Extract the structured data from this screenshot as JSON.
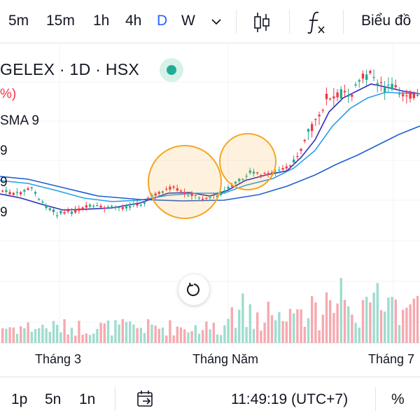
{
  "toolbar": {
    "timeframes": [
      {
        "label": "5m",
        "active": false
      },
      {
        "label": "15m",
        "active": false
      },
      {
        "label": "1h",
        "active": false
      },
      {
        "label": "4h",
        "active": false
      },
      {
        "label": "D",
        "active": true
      },
      {
        "label": "W",
        "active": false
      }
    ],
    "dropdown_icon": "chevron-down-icon",
    "candles_icon": "candlestick-icon",
    "indicators_icon": "function-fx-icon",
    "chart_label": "Biểu đồ"
  },
  "legend": {
    "title": "GELEX · 1D · HSX",
    "pct_fragment": "%)",
    "sma_label": "SMA 9",
    "val_1": "9",
    "val_2": "9",
    "val_3": "9"
  },
  "chart_data": {
    "type": "candlestick",
    "x_tick_labels": [
      "Tháng 3",
      "Tháng Năm",
      "Tháng 7"
    ],
    "overlays": [
      "SMA 9"
    ],
    "annotations": [
      "circle",
      "circle"
    ],
    "colors": {
      "up": "#22ab94",
      "down": "#f23645",
      "ma_fast": "#2e2bb8",
      "ma_mid": "#2c9be6",
      "ma_slow": "#1f5fd0",
      "annotation": "#f5a623"
    }
  },
  "xaxis": {
    "labels": [
      "Tháng 3",
      "Tháng Năm",
      "Tháng 7"
    ]
  },
  "bottom": {
    "ranges": [
      "1p",
      "5n",
      "1n"
    ],
    "goto_icon": "calendar-goto-icon",
    "time": "11:49:19 (UTC+7)",
    "percent_label": "%"
  },
  "reset_icon": "reset-rotate-icon"
}
